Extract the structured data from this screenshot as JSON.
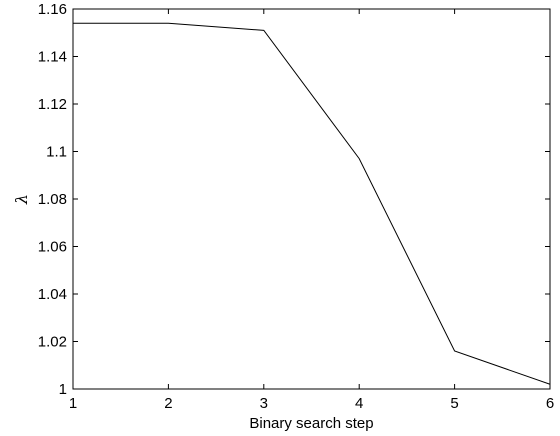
{
  "chart_data": {
    "type": "line",
    "xlabel": "Binary search step",
    "ylabel": "λ",
    "xlim": [
      1,
      6
    ],
    "ylim": [
      1,
      1.16
    ],
    "xticks": [
      1,
      2,
      3,
      4,
      5,
      6
    ],
    "xtick_labels": [
      "1",
      "2",
      "3",
      "4",
      "5",
      "6"
    ],
    "yticks": [
      1,
      1.02,
      1.04,
      1.06,
      1.08,
      1.1,
      1.12,
      1.14,
      1.16
    ],
    "ytick_labels": [
      "1",
      "1.02",
      "1.04",
      "1.06",
      "1.08",
      "1.1",
      "1.12",
      "1.14",
      "1.16"
    ],
    "grid": false,
    "series": [
      {
        "x": [
          1,
          2,
          3,
          4,
          5,
          6
        ],
        "values": [
          1.154,
          1.154,
          1.151,
          1.097,
          1.016,
          1.002
        ],
        "color": "#000000"
      }
    ]
  }
}
